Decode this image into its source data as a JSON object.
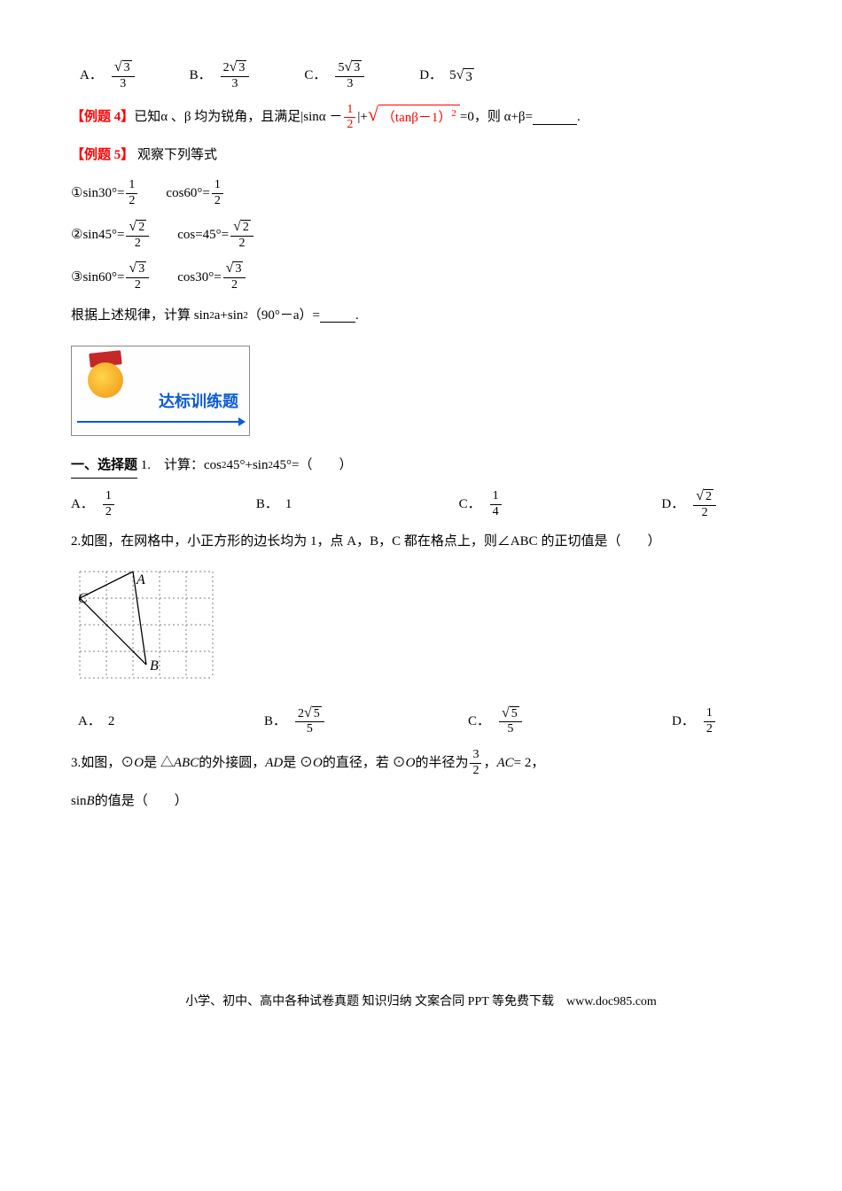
{
  "colors": {
    "text": "#000000",
    "highlight": "#ff0000",
    "link_blue": "#0b5cd6",
    "grid_dash": "#808080",
    "bg": "#ffffff"
  },
  "topOptions": {
    "A": {
      "num": "√3",
      "den": "3"
    },
    "B": {
      "num": "2√3",
      "den": "3"
    },
    "C": {
      "num": "5√3",
      "den": "3"
    },
    "D": "5√3"
  },
  "ex4": {
    "label": "【例题 4】",
    "pre": "已知α 、β 均为锐角，且满足|sinα －",
    "frac1": {
      "num": "1",
      "den": "2"
    },
    "mid": "|+",
    "sqrt_body1": "（tan",
    "sqrt_body2": "β",
    "sqrt_body3": "－1）",
    "sqrt_exp": "2",
    "post": "=0，则 α+β=",
    "tail": "."
  },
  "ex5": {
    "label": "【例题 5】",
    "head": "观察下列等式",
    "lines": [
      {
        "n": "①",
        "left": "sin30°=",
        "lf": {
          "num": "1",
          "den": "2"
        },
        "right": "cos60°=",
        "rf": {
          "num": "1",
          "den": "2"
        }
      },
      {
        "n": "②",
        "left": "sin45°=",
        "lf": {
          "num": "√2",
          "den": "2"
        },
        "right": "cos=45°=",
        "rf": {
          "num": "√2",
          "den": "2"
        }
      },
      {
        "n": "③",
        "left": "sin60°=",
        "lf": {
          "num": "√3",
          "den": "2"
        },
        "right": "cos30°=",
        "rf": {
          "num": "√3",
          "den": "2"
        }
      }
    ],
    "concl_pre": "根据上述规律，计算 sin",
    "concl_mid": "a+sin",
    "concl_post": "（90°－a）=",
    "concl_tail": "."
  },
  "banner": "达标训练题",
  "sec1": {
    "heading": "一、选择题",
    "q1": {
      "stem_pre": "1.　计算：cos",
      "stem_mid": "45°+sin",
      "stem_post": "45°=（　　）",
      "opts": {
        "A": {
          "type": "frac",
          "num": "1",
          "den": "2"
        },
        "B": {
          "type": "text",
          "val": "1"
        },
        "C": {
          "type": "frac",
          "num": "1",
          "den": "4"
        },
        "D": {
          "type": "frac",
          "num": "√2",
          "den": "2"
        }
      }
    },
    "q2": {
      "stem": "2.如图，在网格中，小正方形的边长均为 1，点 A，B，C 都在格点上，则∠ABC 的正切值是（　　）",
      "grid": {
        "cols": 5,
        "rows": 4,
        "cell": 30,
        "dash_color": "#808080",
        "A": {
          "col": 2,
          "row": 0
        },
        "C": {
          "col": 0,
          "row": 1
        },
        "B": {
          "col": 2.5,
          "row": 3.5
        },
        "label_A": "A",
        "label_B": "B",
        "label_C": "C",
        "italic": true
      },
      "opts": {
        "A": {
          "type": "text",
          "val": "2"
        },
        "B": {
          "type": "frac",
          "num": "2√5",
          "den": "5"
        },
        "C": {
          "type": "frac",
          "num": "√5",
          "den": "5"
        },
        "D": {
          "type": "frac",
          "num": "1",
          "den": "2"
        }
      }
    },
    "q3": {
      "l1a": "3.如图，⊙",
      "l1b": "O",
      "l1c": " 是 △",
      "l1d": "ABC",
      "l1e": " 的外接圆，",
      "l1f": "AD",
      "l1g": " 是 ⊙",
      "l1h": "O",
      "l1i": " 的直径，若 ⊙",
      "l1j": "O",
      "l1k": " 的半径为 ",
      "frac": {
        "num": "3",
        "den": "2"
      },
      "l1l": "，",
      "l1m": "AC",
      "l1n": " = 2，",
      "l2a": "sin ",
      "l2b": "B",
      "l2c": " 的值是（　　）"
    }
  },
  "footer": "小学、初中、高中各种试卷真题 知识归纳 文案合同 PPT 等免费下载　www.doc985.com"
}
